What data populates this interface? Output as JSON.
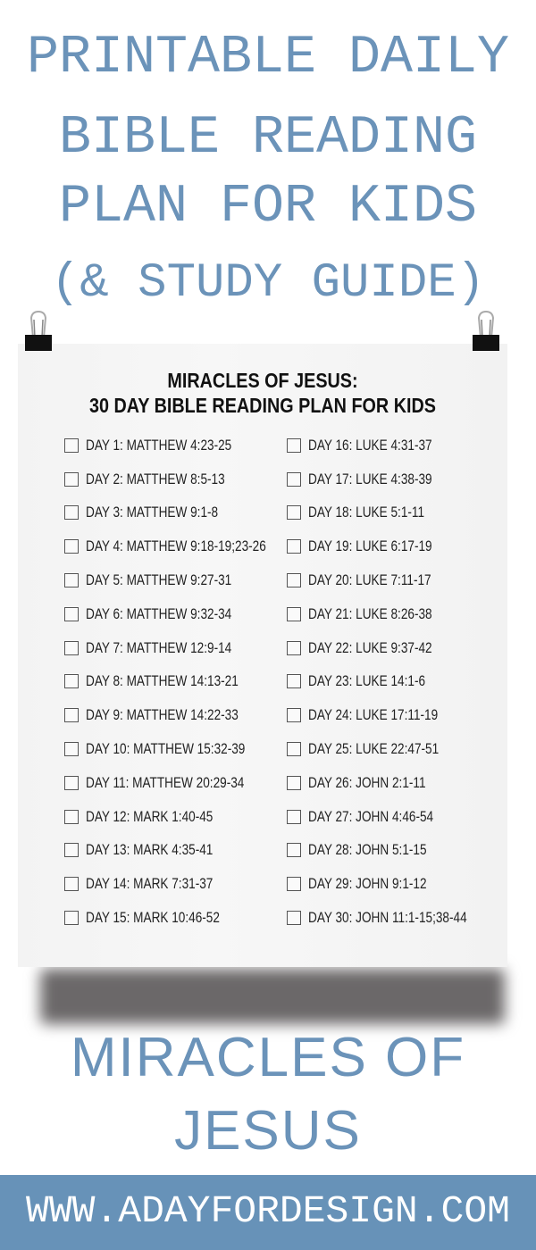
{
  "header": {
    "lines": [
      "PRINTABLE DAILY",
      "BIBLE READING",
      "PLAN FOR KIDS",
      "(& STUDY GUIDE)"
    ],
    "color": "#6b93b9"
  },
  "poster": {
    "title_line1": "MIRACLES OF JESUS:",
    "title_line2": "30 DAY BIBLE READING PLAN FOR KIDS",
    "clip_icon": "binder-clip",
    "left_column": [
      "DAY 1: MATTHEW 4:23-25",
      "DAY 2: MATTHEW 8:5-13",
      "DAY 3: MATTHEW 9:1-8",
      "DAY 4: MATTHEW 9:18-19;23-26",
      "DAY 5: MATTHEW 9:27-31",
      "DAY 6: MATTHEW 9:32-34",
      "DAY 7: MATTHEW 12:9-14",
      "DAY 8: MATTHEW 14:13-21",
      "DAY 9: MATTHEW 14:22-33",
      "DAY 10: MATTHEW 15:32-39",
      "DAY 11: MATTHEW 20:29-34",
      "DAY 12: MARK 1:40-45",
      "DAY 13: MARK 4:35-41",
      "DAY 14: MARK 7:31-37",
      "DAY 15: MARK 10:46-52"
    ],
    "right_column": [
      "DAY 16: LUKE 4:31-37",
      "DAY 17: LUKE 4:38-39",
      "DAY 18: LUKE 5:1-11",
      "DAY 19: LUKE 6:17-19",
      "DAY 20: LUKE 7:11-17",
      "DAY 21: LUKE 8:26-38",
      "DAY 22: LUKE 9:37-42",
      "DAY 23: LUKE 14:1-6",
      "DAY 24: LUKE 17:11-19",
      "DAY 25: LUKE 22:47-51",
      "DAY 26: JOHN 2:1-11",
      "DAY 27: JOHN 4:46-54",
      "DAY 28: JOHN 5:1-15",
      "DAY 29: JOHN 9:1-12",
      "DAY 30: JOHN 11:1-15;38-44"
    ]
  },
  "subtitle": {
    "line1": "MIRACLES OF",
    "line2": "JESUS"
  },
  "footer": {
    "url": "WWW.ADAYFORDESIGN.COM",
    "color": "#6792b8"
  }
}
